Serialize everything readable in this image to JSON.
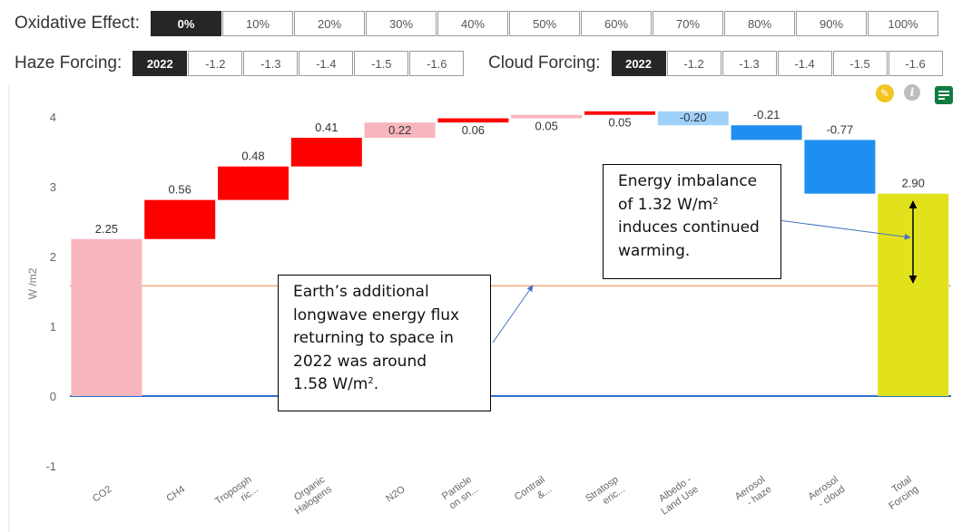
{
  "controls": {
    "oxidative": {
      "label": "Oxidative Effect:",
      "options": [
        "0%",
        "10%",
        "20%",
        "30%",
        "40%",
        "50%",
        "60%",
        "70%",
        "80%",
        "90%",
        "100%"
      ],
      "selected": "0%"
    },
    "haze": {
      "label": "Haze Forcing:",
      "options": [
        "2022",
        "-1.2",
        "-1.3",
        "-1.4",
        "-1.5",
        "-1.6"
      ],
      "selected": "2022"
    },
    "cloud": {
      "label": "Cloud Forcing:",
      "options": [
        "2022",
        "-1.2",
        "-1.3",
        "-1.4",
        "-1.5",
        "-1.6"
      ],
      "selected": "2022"
    }
  },
  "icons": {
    "edit": "pencil-icon",
    "info": "info-icon",
    "table": "table-icon"
  },
  "chart_data": {
    "type": "waterfall",
    "ylabel": "W /m2",
    "ylim": [
      -1,
      4
    ],
    "yticks": [
      -1,
      0,
      1,
      2,
      3,
      4
    ],
    "grid": false,
    "categories": [
      {
        "label": [
          "CO2"
        ],
        "value": 2.25,
        "value_label": "2.25",
        "color": "#f7b6be"
      },
      {
        "label": [
          "CH4"
        ],
        "value": 0.56,
        "value_label": "0.56",
        "color": "#ff0000"
      },
      {
        "label": [
          "Troposph",
          "ric..."
        ],
        "value": 0.48,
        "value_label": "0.48",
        "color": "#ff0000"
      },
      {
        "label": [
          "Organic",
          "Halogens"
        ],
        "value": 0.41,
        "value_label": "0.41",
        "color": "#ff0000"
      },
      {
        "label": [
          "N2O"
        ],
        "value": 0.22,
        "value_label": "0.22",
        "color": "#f7b6be"
      },
      {
        "label": [
          "Particle",
          "on sn..."
        ],
        "value": 0.06,
        "value_label": "0.06",
        "color": "#ff0000"
      },
      {
        "label": [
          "Contrail",
          "&..."
        ],
        "value": 0.05,
        "value_label": "0.05",
        "color": "#f7b6be"
      },
      {
        "label": [
          "Stratosp",
          "eric..."
        ],
        "value": 0.05,
        "value_label": "0.05",
        "color": "#ff0000"
      },
      {
        "label": [
          "Albedo -",
          "Land Use"
        ],
        "value": -0.2,
        "value_label": "-0.20",
        "color": "#9fd0f8"
      },
      {
        "label": [
          "Aerosol",
          "- haze"
        ],
        "value": -0.21,
        "value_label": "-0.21",
        "color": "#1e8ff0"
      },
      {
        "label": [
          "Aerosol",
          "- cloud"
        ],
        "value": -0.77,
        "value_label": "-0.77",
        "color": "#1e8ff0"
      },
      {
        "label": [
          "Total",
          "Forcing"
        ],
        "value": 2.9,
        "value_label": "2.90",
        "color": "#e2e21c",
        "is_total": true
      }
    ],
    "reference_lines": [
      {
        "value": 0,
        "color": "#2e6fce"
      },
      {
        "value": 1.58,
        "color": "#f5a877"
      }
    ],
    "annotations": [
      {
        "id": "imbalance",
        "lines": [
          "Energy imbalance",
          "of 1.32 W/m|2",
          "induces continued",
          "warming."
        ]
      },
      {
        "id": "longwave",
        "lines": [
          "Earth’s additional",
          "longwave energy flux",
          "returning to space in",
          "2022 was around",
          "1.58 W/m|2|."
        ]
      }
    ]
  }
}
